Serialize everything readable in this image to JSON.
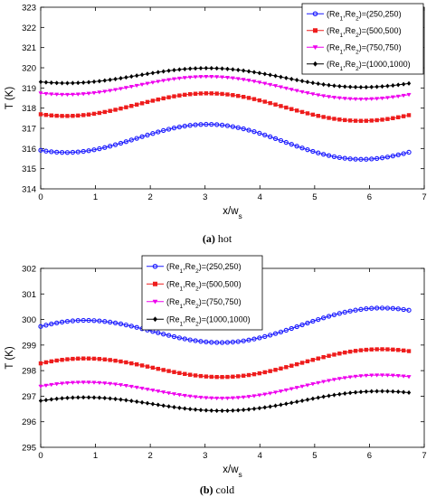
{
  "chart_data": [
    {
      "type": "line",
      "caption_label": "(a)",
      "caption_text": "hot",
      "xlabel": "x/w",
      "xlabel_sub": "s",
      "ylabel": "T (K)",
      "xlim": [
        0,
        7
      ],
      "ylim": [
        314,
        323
      ],
      "xticks": [
        0,
        1,
        2,
        3,
        4,
        5,
        6,
        7
      ],
      "yticks": [
        314,
        315,
        316,
        317,
        318,
        319,
        320,
        321,
        322,
        323
      ],
      "legend_position": "top-right",
      "wave": {
        "x_start": 0,
        "x_end": 6.72,
        "n_points": 70,
        "period": 5.4,
        "x_peak": 3.1
      },
      "series": [
        {
          "name": "(Re1,Re2)=(250,250)",
          "color": "#1a1aff",
          "marker": "circle",
          "mean": 316.4,
          "amplitude": 0.78,
          "trend": -0.42
        },
        {
          "name": "(Re1,Re2)=(500,500)",
          "color": "#ee1c1c",
          "marker": "square",
          "mean": 318.1,
          "amplitude": 0.62,
          "trend": -0.3
        },
        {
          "name": "(Re1,Re2)=(750,750)",
          "color": "#ee00ee",
          "marker": "triangle-down",
          "mean": 319.05,
          "amplitude": 0.5,
          "trend": -0.28
        },
        {
          "name": "(Re1,Re2)=(1000,1000)",
          "color": "#000000",
          "marker": "diamond",
          "mean": 319.55,
          "amplitude": 0.42,
          "trend": -0.25
        }
      ]
    },
    {
      "type": "line",
      "caption_label": "(b)",
      "caption_text": "cold",
      "xlabel": "x/w",
      "xlabel_sub": "s",
      "ylabel": "T (K)",
      "xlim": [
        0,
        7
      ],
      "ylim": [
        295,
        302
      ],
      "xticks": [
        0,
        1,
        2,
        3,
        4,
        5,
        6,
        7
      ],
      "yticks": [
        295,
        296,
        297,
        298,
        299,
        300,
        301,
        302
      ],
      "legend_position": "top-left",
      "wave": {
        "x_start": 0,
        "x_end": 6.72,
        "n_points": 70,
        "period": 5.4,
        "x_peak": 0.7
      },
      "series": [
        {
          "name": "(Re1,Re2)=(250,250)",
          "color": "#1a1aff",
          "marker": "circle",
          "mean": 299.65,
          "amplitude": 0.55,
          "trend": 0.6
        },
        {
          "name": "(Re1,Re2)=(500,500)",
          "color": "#ee1c1c",
          "marker": "square",
          "mean": 298.2,
          "amplitude": 0.45,
          "trend": 0.45
        },
        {
          "name": "(Re1,Re2)=(750,750)",
          "color": "#ee00ee",
          "marker": "triangle-down",
          "mean": 297.3,
          "amplitude": 0.38,
          "trend": 0.35
        },
        {
          "name": "(Re1,Re2)=(1000,1000)",
          "color": "#000000",
          "marker": "diamond",
          "mean": 296.75,
          "amplitude": 0.32,
          "trend": 0.3
        }
      ]
    }
  ]
}
